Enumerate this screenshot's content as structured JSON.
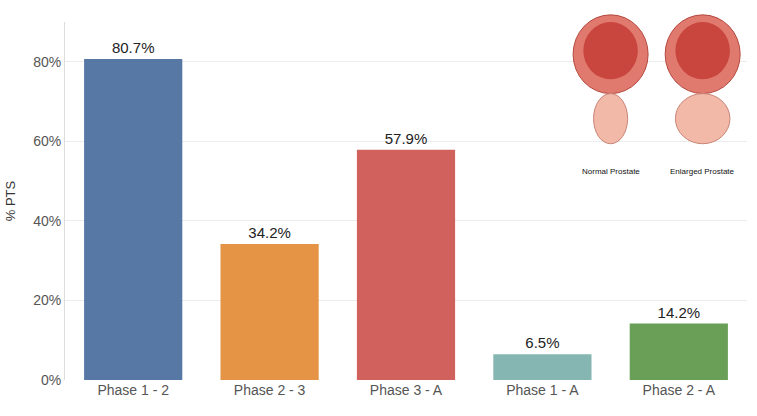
{
  "chart_data": {
    "type": "bar",
    "y_label": "% PTS",
    "categories": [
      "Phase 1 - 2",
      "Phase 2 - 3",
      "Phase 3 - A",
      "Phase 1 - A",
      "Phase 2 - A"
    ],
    "values": [
      80.7,
      34.2,
      57.9,
      6.5,
      14.2
    ],
    "value_labels": [
      "80.7%",
      "34.2%",
      "57.9%",
      "6.5%",
      "14.2%"
    ],
    "colors": [
      "#5778a4",
      "#e49444",
      "#d1615d",
      "#85b6b2",
      "#6a9f58"
    ],
    "ylim": [
      0,
      90
    ],
    "yticks": [
      {
        "value": 0,
        "label": "0%"
      },
      {
        "value": 20,
        "label": "20%"
      },
      {
        "value": 40,
        "label": "40%"
      },
      {
        "value": 60,
        "label": "60%"
      },
      {
        "value": 80,
        "label": "80%"
      }
    ],
    "grid": true,
    "data_labels": true,
    "annotations": [
      "Normal Prostate",
      "Enlarged Prostate"
    ]
  }
}
